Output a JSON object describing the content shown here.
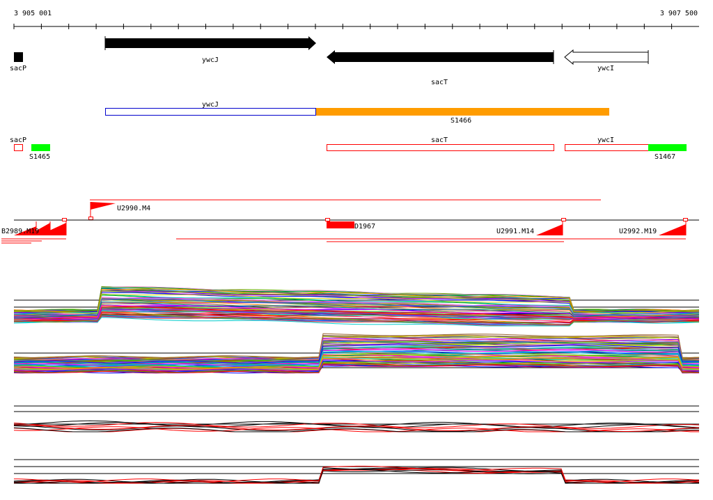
{
  "coordinates": {
    "start": "3 905 001",
    "end": "3 907 500"
  },
  "genes": [
    {
      "name": "ywcJ",
      "strand": "+",
      "fill": "#000000"
    },
    {
      "name": "sacT",
      "strand": "-",
      "fill": "#000000"
    },
    {
      "name": "ywcI",
      "strand": "-",
      "fill": "#ffffff"
    },
    {
      "name": "sacP",
      "strand": "+",
      "fill": "#000000"
    }
  ],
  "segments": {
    "ywcJ": "ywcJ",
    "S1466": "S1466",
    "sacP": "sacP",
    "S1465": "S1465",
    "sacT": "sacT",
    "ywcI": "ywcI",
    "S1467": "S1467"
  },
  "upshifts": {
    "U2990": "U2990.M4",
    "D1967": "D1967",
    "U2991": "U2991.M14",
    "U2992": "U2992.M19",
    "left_overlap": "B2989.M19"
  },
  "colors": {
    "orange": "#ff9c00",
    "green": "#00ff00",
    "red": "#ff0000",
    "blue": "#0000cc",
    "black": "#000000"
  }
}
